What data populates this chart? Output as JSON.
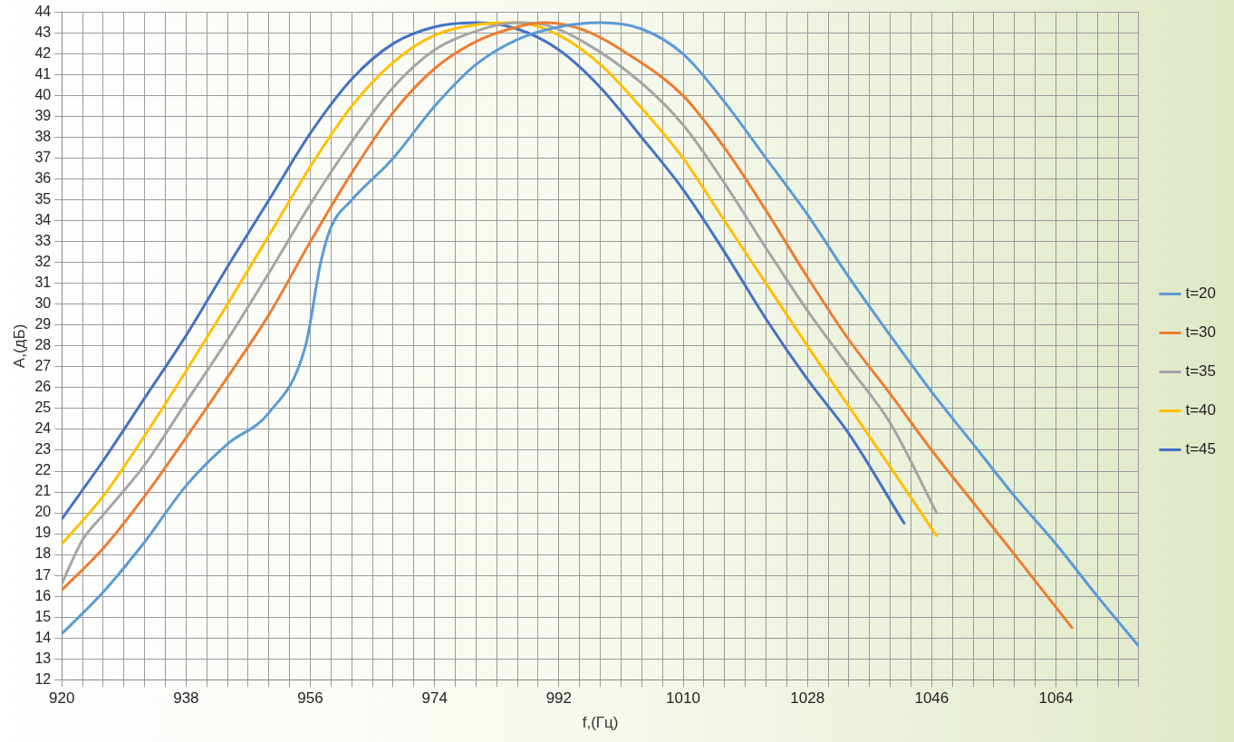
{
  "chart_data": {
    "type": "line",
    "xlabel": "f,(Гц)",
    "ylabel": "A,(дБ)",
    "xlim": [
      920,
      1076
    ],
    "ylim": [
      12,
      44
    ],
    "xticks": [
      920,
      {
        "value": 923,
        "label": null
      },
      {
        "value": 926,
        "label": null
      },
      {
        "value": 929,
        "label": null
      },
      {
        "value": 932,
        "label": null
      },
      {
        "value": 935,
        "label": null
      },
      938,
      {
        "value": 941,
        "label": null
      },
      {
        "value": 944,
        "label": null
      },
      {
        "value": 947,
        "label": null
      },
      {
        "value": 950,
        "label": null
      },
      {
        "value": 953,
        "label": null
      },
      956,
      {
        "value": 959,
        "label": null
      },
      {
        "value": 962,
        "label": null
      },
      {
        "value": 965,
        "label": null
      },
      {
        "value": 968,
        "label": null
      },
      {
        "value": 971,
        "label": null
      },
      974,
      {
        "value": 977,
        "label": null
      },
      {
        "value": 980,
        "label": null
      },
      {
        "value": 983,
        "label": null
      },
      {
        "value": 986,
        "label": null
      },
      {
        "value": 989,
        "label": null
      },
      992,
      {
        "value": 995,
        "label": null
      },
      {
        "value": 998,
        "label": null
      },
      {
        "value": 1001,
        "label": null
      },
      {
        "value": 1004,
        "label": null
      },
      {
        "value": 1007,
        "label": null
      },
      1010,
      {
        "value": 1013,
        "label": null
      },
      {
        "value": 1016,
        "label": null
      },
      {
        "value": 1019,
        "label": null
      },
      {
        "value": 1022,
        "label": null
      },
      {
        "value": 1025,
        "label": null
      },
      1028,
      {
        "value": 1031,
        "label": null
      },
      {
        "value": 1034,
        "label": null
      },
      {
        "value": 1037,
        "label": null
      },
      {
        "value": 1040,
        "label": null
      },
      {
        "value": 1043,
        "label": null
      },
      1046,
      {
        "value": 1049,
        "label": null
      },
      {
        "value": 1052,
        "label": null
      },
      {
        "value": 1055,
        "label": null
      },
      {
        "value": 1058,
        "label": null
      },
      {
        "value": 1061,
        "label": null
      },
      1064,
      {
        "value": 1067,
        "label": null
      },
      {
        "value": 1070,
        "label": null
      },
      {
        "value": 1073,
        "label": null
      },
      {
        "value": 1076,
        "label": null
      }
    ],
    "yticks": [
      12,
      13,
      14,
      15,
      16,
      17,
      18,
      19,
      20,
      21,
      22,
      23,
      24,
      25,
      26,
      27,
      28,
      29,
      30,
      31,
      32,
      33,
      34,
      35,
      36,
      37,
      38,
      39,
      40,
      41,
      42,
      43,
      44
    ],
    "grid": true,
    "legend": "right",
    "marker": "none",
    "line_style": "solid",
    "series": [
      {
        "name": "t=20",
        "color": "#5b9bd5",
        "x": [
          920,
          926,
          932,
          938,
          944,
          950,
          955.3,
          957.5,
          959,
          962,
          968,
          974,
          980,
          986,
          992,
          998,
          1004,
          1010,
          1016,
          1022,
          1028,
          1034,
          1040,
          1046,
          1052,
          1058,
          1064,
          1070,
          1076
        ],
        "values": [
          14.2,
          16.2,
          18.6,
          21.3,
          23.3,
          24.8,
          28,
          32,
          33.7,
          35,
          37,
          39.5,
          41.5,
          42.7,
          43.3,
          43.5,
          43.2,
          42,
          39.7,
          37,
          34.3,
          31.3,
          28.5,
          25.8,
          23.3,
          20.8,
          18.5,
          16,
          13.6
        ]
      },
      {
        "name": "t=30",
        "color": "#ed7d31",
        "x": [
          920,
          926,
          932,
          938,
          944,
          950,
          956,
          962,
          968,
          974,
          980,
          986,
          990,
          996,
          1002,
          1010,
          1016,
          1022,
          1028,
          1034,
          1040,
          1046,
          1052,
          1058,
          1066.3
        ],
        "values": [
          16.3,
          18.3,
          20.8,
          23.6,
          26.5,
          29.5,
          33,
          36.3,
          39.2,
          41.3,
          42.6,
          43.3,
          43.5,
          43.1,
          42,
          40,
          37.5,
          34.5,
          31.3,
          28.3,
          25.7,
          23,
          20.5,
          18,
          14.5
        ]
      },
      {
        "name": "t=35",
        "color": "#a5a5a5",
        "x": [
          920,
          923,
          926,
          932,
          938,
          944,
          950,
          956,
          962,
          968,
          974,
          980,
          986,
          990,
          996,
          1004,
          1010,
          1016,
          1022,
          1028,
          1034,
          1040,
          1046.7
        ],
        "values": [
          16.6,
          18.7,
          19.9,
          22.3,
          25.3,
          28.3,
          31.5,
          34.8,
          37.8,
          40.4,
          42.2,
          43.1,
          43.5,
          43.4,
          42.5,
          40.6,
          38.6,
          35.8,
          32.7,
          29.7,
          27,
          24.3,
          20
        ]
      },
      {
        "name": "t=40",
        "color": "#ffc000",
        "x": [
          920,
          926,
          932,
          938,
          944,
          950,
          956,
          962,
          968,
          974,
          980,
          986,
          992,
          998,
          1004,
          1010,
          1016,
          1022,
          1028,
          1034,
          1040,
          1046.7
        ],
        "values": [
          18.5,
          20.8,
          23.7,
          26.8,
          30,
          33.3,
          36.6,
          39.5,
          41.6,
          42.9,
          43.4,
          43.5,
          42.9,
          41.5,
          39.4,
          37,
          34,
          31,
          28,
          25.1,
          22.2,
          18.9
        ]
      },
      {
        "name": "t=45",
        "color": "#4472c4",
        "x": [
          920,
          926,
          932,
          938,
          944,
          950,
          956,
          962,
          968,
          974,
          980,
          986,
          992,
          998,
          1004,
          1010,
          1016,
          1022,
          1028,
          1034,
          1042
        ],
        "values": [
          19.7,
          22.5,
          25.5,
          28.5,
          31.8,
          35,
          38.2,
          40.8,
          42.5,
          43.3,
          43.5,
          43.2,
          42.2,
          40.4,
          38,
          35.5,
          32.5,
          29.3,
          26.4,
          23.8,
          19.5
        ]
      }
    ]
  }
}
